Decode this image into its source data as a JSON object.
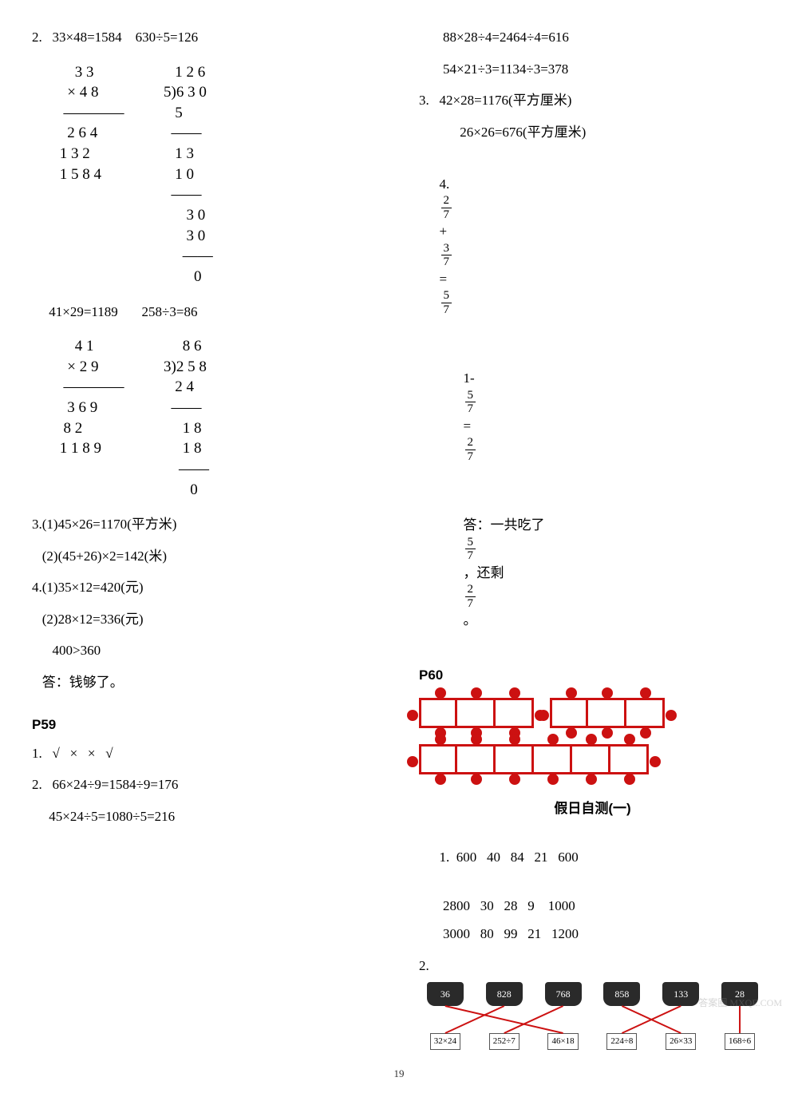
{
  "left": {
    "q2_header": "2.   33×48=1584    630÷5=126",
    "mult1": "     3 3\n   × 4 8\n  ――――\n   2 6 4\n 1 3 2\n 1 5 8 4",
    "div1": "     1 2 6\n  5)6 3 0\n     5\n    ――\n     1 3\n     1 0\n    ――\n        3 0\n        3 0\n       ――\n          0",
    "pair2_header": "     41×29=1189       258÷3=86",
    "mult2": "     4 1\n   × 2 9\n  ――――\n   3 6 9\n  8 2\n 1 1 8 9",
    "div2": "       8 6\n  3)2 5 8\n     2 4\n    ――\n       1 8\n       1 8\n      ――\n         0",
    "q3a": "3.(1)45×26=1170(平方米)",
    "q3b": "   (2)(45+26)×2=142(米)",
    "q4a": "4.(1)35×12=420(元)",
    "q4b": "   (2)28×12=336(元)",
    "q4c": "      400>360",
    "q4ans": "   答：钱够了。",
    "p59": "P59",
    "p59_1": "1.   √   ×   ×   √",
    "p59_2a": "2.   66×24÷9=1584÷9=176",
    "p59_2b": "     45×24÷5=1080÷5=216"
  },
  "right": {
    "l1": "88×28÷4=2464÷4=616",
    "l2": "54×21÷3=1134÷3=378",
    "q3a": "3.   42×28=1176(平方厘米)",
    "q3b": "     26×26=676(平方厘米)",
    "q4_label": "4.  ",
    "q4_f1_n1": "2",
    "q4_f1_d1": "7",
    "q4_f1_n2": "3",
    "q4_f1_d2": "7",
    "q4_f1_n3": "5",
    "q4_f1_d3": "7",
    "q4_f2_pref": "1-",
    "q4_f2_n1": "5",
    "q4_f2_d1": "7",
    "q4_f2_n2": "2",
    "q4_f2_d2": "7",
    "q4_ans_prefix": "答：一共吃了",
    "q4_ans_mid": "，还剩",
    "q4_ans_suffix": "。",
    "ans_n1": "5",
    "ans_d1": "7",
    "ans_n2": "2",
    "ans_d2": "7",
    "p60": "P60",
    "diag_color": "#cc1111",
    "test_title": "假日自测(一)",
    "t1_label": "1.",
    "t1_r1": "600   40   84   21   600",
    "t1_r2": "2800   30   28   9    1000",
    "t1_r3": "3000   80   99   21   1200",
    "t2_label": "2.",
    "tops": [
      "36",
      "828",
      "768",
      "858",
      "133",
      "28"
    ],
    "bots": [
      "32×24",
      "252÷7",
      "46×18",
      "224÷8",
      "26×33",
      "168÷6"
    ],
    "line_color": "#cc1111"
  },
  "pageno": "19",
  "watermark": "答案圈 MXQE.COM"
}
